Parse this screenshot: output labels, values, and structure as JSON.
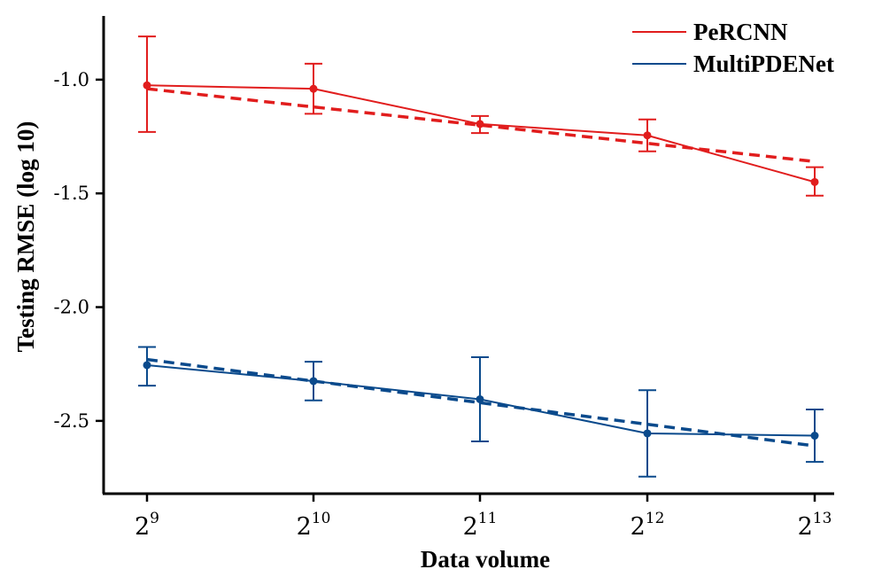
{
  "chart_data": {
    "type": "line",
    "title": "",
    "xlabel": "Data volume",
    "ylabel": "Testing RMSE (log 10)",
    "x_ticks": [
      {
        "base": "2",
        "exp": "9"
      },
      {
        "base": "2",
        "exp": "10"
      },
      {
        "base": "2",
        "exp": "11"
      },
      {
        "base": "2",
        "exp": "12"
      },
      {
        "base": "2",
        "exp": "13"
      }
    ],
    "y_ticks": [
      -1.0,
      -1.5,
      -2.0,
      -2.5
    ],
    "y_tick_labels": [
      "-1.0",
      "-1.5",
      "-2.0",
      "-2.5"
    ],
    "ylim": [
      -2.82,
      -0.72
    ],
    "legend_position": "top-right",
    "series": [
      {
        "name": "PeRCNN",
        "color": "#e11d1d",
        "values": [
          -1.025,
          -1.04,
          -1.195,
          -1.245,
          -1.45
        ],
        "error": [
          [
            -1.23,
            -0.81
          ],
          [
            -1.15,
            -0.93
          ],
          [
            -1.235,
            -1.16
          ],
          [
            -1.315,
            -1.175
          ],
          [
            -1.51,
            -1.385
          ]
        ],
        "trend": [
          -1.04,
          -1.12,
          -1.2,
          -1.28,
          -1.36
        ]
      },
      {
        "name": "MultiPDENet",
        "color": "#0a4a8c",
        "values": [
          -2.255,
          -2.325,
          -2.405,
          -2.555,
          -2.565
        ],
        "error": [
          [
            -2.345,
            -2.175
          ],
          [
            -2.41,
            -2.24
          ],
          [
            -2.59,
            -2.22
          ],
          [
            -2.745,
            -2.365
          ],
          [
            -2.68,
            -2.45
          ]
        ],
        "trend": [
          -2.23,
          -2.325,
          -2.42,
          -2.515,
          -2.61
        ]
      }
    ]
  }
}
